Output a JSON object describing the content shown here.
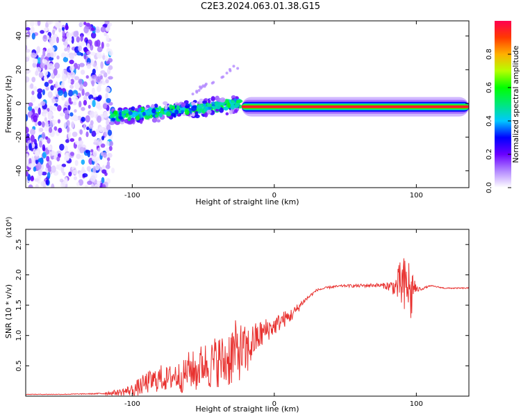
{
  "page_title": "C2E3.2024.063.01.38.G15",
  "colors": {
    "snr_line": "#e8312f",
    "spec_dots": "#6a00ff",
    "colorbar": [
      "#ffffff",
      "#b388ff",
      "#6a00ff",
      "#0000ff",
      "#00c8ff",
      "#00e87a",
      "#00ff00",
      "#b5ff00",
      "#ffb000",
      "#ff3a00",
      "#ff0050"
    ]
  },
  "chart_data": [
    {
      "type": "heatmap",
      "xlabel": "Height of straight line (km)",
      "ylabel": "Frequency (Hz)",
      "xlim": [
        -175,
        137
      ],
      "ylim": [
        -50,
        49
      ],
      "xticks": [
        -100,
        0,
        100
      ],
      "xtick_labels": [
        "-100",
        "0",
        "100"
      ],
      "yticks": [
        -40,
        -20,
        0,
        20,
        40
      ],
      "ytick_labels": [
        "-40",
        "-20",
        "0",
        "20",
        "40"
      ],
      "grid": false,
      "colorbar": {
        "label": "Normalized spectral amplitude",
        "range": [
          0,
          1
        ],
        "ticks": [
          0.0,
          0.2,
          0.4,
          0.6,
          0.8
        ],
        "tick_labels": [
          "0.0",
          "0.2",
          "0.4",
          "0.6",
          "0.8"
        ]
      },
      "regions": [
        {
          "kind": "noise",
          "x": [
            -175,
            -115
          ],
          "freq": [
            -50,
            49
          ],
          "amplitude": 0.15
        },
        {
          "kind": "scattered_band",
          "x": [
            -115,
            -23
          ],
          "freq_start": -8,
          "freq_end": 0,
          "spread": 8,
          "amplitude": 0.4
        },
        {
          "kind": "steady_line",
          "x": [
            -23,
            137
          ],
          "freq": -2,
          "amplitude": 0.95
        }
      ]
    },
    {
      "type": "line",
      "xlabel": "Height of straight line (km)",
      "ylabel": "SNR (10 * v/v)",
      "ylabel_multiplier": "(x10⁴)",
      "xlim": [
        -175,
        137
      ],
      "ylim": [
        0,
        2.75
      ],
      "xticks": [
        -100,
        0,
        100
      ],
      "xtick_labels": [
        "-100",
        "0",
        "100"
      ],
      "yticks": [
        0.5,
        1.0,
        1.5,
        2.0,
        2.5
      ],
      "ytick_labels": [
        "0.5",
        "1.0",
        "1.5",
        "2.0",
        "2.5"
      ],
      "grid": false,
      "series": [
        {
          "x": [
            -175,
            -150,
            -125,
            -110,
            -100,
            -95,
            -90,
            -85,
            -80,
            -75,
            -70,
            -65,
            -60,
            -55,
            -50,
            -45,
            -40,
            -35,
            -30,
            -25,
            -20,
            -15,
            -10,
            -5,
            0,
            5,
            10,
            15,
            20,
            25,
            30,
            40,
            50,
            60,
            70,
            78,
            85,
            90,
            92,
            94,
            96,
            98,
            100,
            105,
            110,
            120,
            130,
            137
          ],
          "y": [
            0.03,
            0.03,
            0.04,
            0.06,
            0.1,
            0.15,
            0.22,
            0.25,
            0.3,
            0.28,
            0.35,
            0.3,
            0.45,
            0.4,
            0.55,
            0.5,
            0.6,
            0.55,
            0.7,
            0.75,
            0.7,
            0.9,
            1.0,
            1.1,
            1.15,
            1.25,
            1.3,
            1.4,
            1.55,
            1.65,
            1.75,
            1.8,
            1.82,
            1.82,
            1.83,
            1.82,
            1.8,
            1.85,
            1.7,
            1.9,
            1.6,
            1.85,
            1.75,
            1.78,
            1.82,
            1.78,
            1.78,
            1.78
          ],
          "noise": [
            0.005,
            0.005,
            0.01,
            0.05,
            0.1,
            0.15,
            0.18,
            0.2,
            0.22,
            0.2,
            0.25,
            0.25,
            0.3,
            0.35,
            0.35,
            0.4,
            0.45,
            0.45,
            0.55,
            0.5,
            0.45,
            0.3,
            0.25,
            0.2,
            0.15,
            0.15,
            0.12,
            0.1,
            0.05,
            0.03,
            0.02,
            0.02,
            0.02,
            0.03,
            0.03,
            0.05,
            0.15,
            0.5,
            0.6,
            0.55,
            0.5,
            0.3,
            0.05,
            0.02,
            0.01,
            0.01,
            0.01,
            0.01
          ]
        }
      ]
    }
  ]
}
